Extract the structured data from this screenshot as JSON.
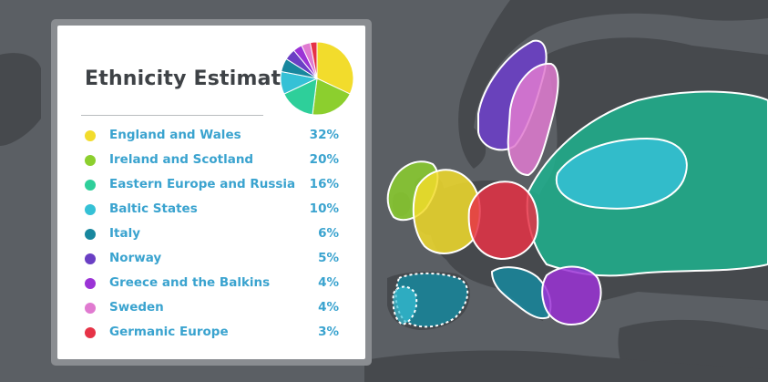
{
  "card": {
    "title": "Ethnicity Estimate",
    "items": [
      {
        "name": "England and Wales",
        "percent": "32%",
        "value": 32,
        "color": "#f2dc2c"
      },
      {
        "name": "Ireland and Scotland",
        "percent": "20%",
        "value": 20,
        "color": "#8ccf2e"
      },
      {
        "name": "Eastern Europe and Russia",
        "percent": "16%",
        "value": 16,
        "color": "#2ecf9a"
      },
      {
        "name": "Baltic States",
        "percent": "10%",
        "value": 10,
        "color": "#35c1d6"
      },
      {
        "name": "Italy",
        "percent": "6%",
        "value": 6,
        "color": "#18879e"
      },
      {
        "name": "Norway",
        "percent": "5%",
        "value": 5,
        "color": "#6a3fc4"
      },
      {
        "name": "Greece and the Balkins",
        "percent": "4%",
        "value": 4,
        "color": "#9b33d6"
      },
      {
        "name": "Sweden",
        "percent": "4%",
        "value": 4,
        "color": "#e07ad0"
      },
      {
        "name": "Germanic Europe",
        "percent": "3%",
        "value": 3,
        "color": "#e63347"
      }
    ]
  },
  "colors": {
    "text_name": "#3aa3cf",
    "title": "#3e4246",
    "map_sea": "#5b5f64",
    "map_land": "#46494d"
  }
}
